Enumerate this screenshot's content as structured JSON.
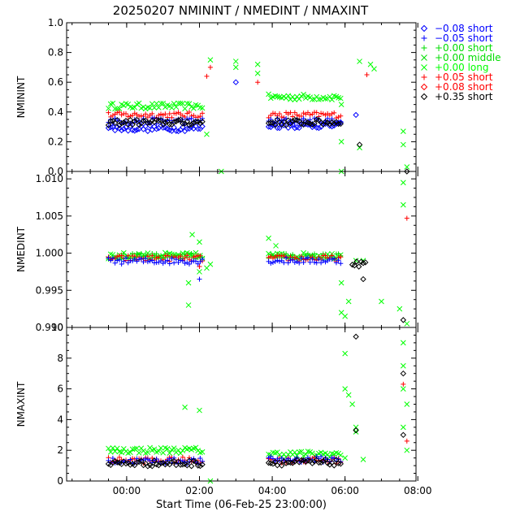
{
  "title": "20250207  NMININT  /  NMEDINT  /  NMAXINT",
  "xlabel": "Start Time (06-Feb-25 23:00:00)",
  "colors": {
    "black": "#000000",
    "blue": "#0000ff",
    "green": "#00dd00",
    "brightgreen": "#00ff00",
    "red": "#ff0000"
  },
  "legend": [
    {
      "marker": "diamond",
      "color": "#0000ff",
      "label": "−0.08 short"
    },
    {
      "marker": "plus",
      "color": "#0000ff",
      "label": "−0.05 short"
    },
    {
      "marker": "plus",
      "color": "#00dd00",
      "label": "+0.00 short"
    },
    {
      "marker": "cross",
      "color": "#00dd00",
      "label": "+0.00 middle"
    },
    {
      "marker": "cross",
      "color": "#00ff00",
      "label": "+0.00 long"
    },
    {
      "marker": "plus",
      "color": "#ff0000",
      "label": "+0.05 short"
    },
    {
      "marker": "diamond",
      "color": "#ff0000",
      "label": "+0.08 short"
    },
    {
      "marker": "diamond",
      "color": "#000000",
      "label": "+0.35 short"
    }
  ],
  "chart_data": [
    {
      "type": "scatter",
      "ylabel": "NMININT",
      "ylim": [
        0.0,
        1.0
      ],
      "yticks": [
        0.0,
        0.2,
        0.4,
        0.6,
        0.8,
        1.0
      ],
      "yticklabels": [
        "0.0",
        "0.2",
        "0.4",
        "0.6",
        "0.8",
        "1.0"
      ],
      "xlim_hours": [
        -0.65,
        8.95
      ],
      "xticks_hours": [
        1,
        3,
        5,
        7,
        9
      ],
      "xticklabels": [
        "00:00",
        "02:00",
        "04:00",
        "06:00",
        "08:00"
      ],
      "series": [
        {
          "name": "+0.00 long",
          "marker": "cross",
          "color": "#00ff00",
          "segments": [
            [
              0.5,
              3.1,
              0.44
            ],
            [
              4.9,
              6.9,
              0.5
            ]
          ],
          "points": [
            [
              4.0,
              0.74
            ],
            [
              4.0,
              0.7
            ],
            [
              4.6,
              0.72
            ],
            [
              4.6,
              0.66
            ],
            [
              7.7,
              0.72
            ],
            [
              7.8,
              0.69
            ],
            [
              7.4,
              0.74
            ],
            [
              6.9,
              0.45
            ],
            [
              6.9,
              0.2
            ],
            [
              7.4,
              0.16
            ],
            [
              6.9,
              0.0
            ],
            [
              8.6,
              0.27
            ],
            [
              8.6,
              0.18
            ],
            [
              8.7,
              0.03
            ],
            [
              3.6,
              0.0
            ],
            [
              3.3,
              0.75
            ],
            [
              3.2,
              0.25
            ]
          ]
        },
        {
          "name": "+0.05 short",
          "marker": "plus",
          "color": "#ff0000",
          "segments": [
            [
              0.5,
              3.1,
              0.38
            ],
            [
              4.9,
              6.9,
              0.38
            ]
          ],
          "points": [
            [
              3.2,
              0.64
            ],
            [
              3.3,
              0.7
            ],
            [
              4.6,
              0.6
            ],
            [
              7.6,
              0.65
            ]
          ]
        },
        {
          "name": "-0.05 short",
          "marker": "plus",
          "color": "#0000ff",
          "segments": [
            [
              0.5,
              3.1,
              0.34
            ],
            [
              4.9,
              6.9,
              0.34
            ]
          ],
          "points": []
        },
        {
          "name": "-0.08 short",
          "marker": "diamond",
          "color": "#0000ff",
          "segments": [
            [
              0.5,
              3.1,
              0.29
            ],
            [
              4.9,
              6.9,
              0.31
            ]
          ],
          "points": [
            [
              4.0,
              0.6
            ],
            [
              7.3,
              0.38
            ]
          ]
        },
        {
          "name": "+0.35 short",
          "marker": "diamond",
          "color": "#000000",
          "segments": [
            [
              0.5,
              3.1,
              0.33
            ],
            [
              4.9,
              6.9,
              0.33
            ]
          ],
          "points": [
            [
              7.4,
              0.18
            ],
            [
              8.7,
              0.0
            ]
          ]
        }
      ]
    },
    {
      "type": "scatter",
      "ylabel": "NMEDINT",
      "ylim": [
        0.99,
        1.011
      ],
      "yticks": [
        0.99,
        0.995,
        1.0,
        1.005,
        1.01
      ],
      "yticklabels": [
        "0.990",
        "0.995",
        "1.000",
        "1.005",
        "1.010"
      ],
      "xlim_hours": [
        -0.65,
        8.95
      ],
      "xticks_hours": [
        1,
        3,
        5,
        7,
        9
      ],
      "xticklabels": [
        "00:00",
        "02:00",
        "04:00",
        "06:00",
        "08:00"
      ],
      "series": [
        {
          "name": "+0.00 long",
          "marker": "cross",
          "color": "#00ff00",
          "segments": [
            [
              0.5,
              3.1,
              0.99965
            ],
            [
              4.9,
              6.9,
              0.99965
            ]
          ],
          "points": [
            [
              2.8,
              1.0025
            ],
            [
              3.0,
              1.0015
            ],
            [
              3.0,
              0.9975
            ],
            [
              2.7,
              0.996
            ],
            [
              2.7,
              0.993
            ],
            [
              3.2,
              0.998
            ],
            [
              3.3,
              0.9985
            ],
            [
              4.9,
              1.002
            ],
            [
              5.1,
              1.001
            ],
            [
              6.9,
              0.996
            ],
            [
              6.9,
              0.992
            ],
            [
              7.0,
              0.9915
            ],
            [
              7.1,
              0.9935
            ],
            [
              7.3,
              0.999
            ],
            [
              7.5,
              0.999
            ],
            [
              8.0,
              0.9935
            ],
            [
              8.5,
              0.9925
            ],
            [
              8.6,
              1.0095
            ],
            [
              8.6,
              1.0065
            ],
            [
              8.7,
              0.9905
            ]
          ]
        },
        {
          "name": "+0.00 short",
          "marker": "plus",
          "color": "#00dd00",
          "segments": [
            [
              0.5,
              3.1,
              0.99955
            ],
            [
              4.9,
              6.9,
              0.99955
            ]
          ],
          "points": []
        },
        {
          "name": "+0.05 short",
          "marker": "plus",
          "color": "#ff0000",
          "segments": [
            [
              0.5,
              3.1,
              0.9993
            ],
            [
              4.9,
              6.9,
              0.9993
            ]
          ],
          "points": [
            [
              8.7,
              1.0047
            ],
            [
              3.0,
              0.9982
            ]
          ]
        },
        {
          "name": "-0.05 short",
          "marker": "plus",
          "color": "#0000ff",
          "segments": [
            [
              0.5,
              3.1,
              0.99895
            ],
            [
              4.9,
              6.9,
              0.999
            ]
          ],
          "points": [
            [
              3.0,
              0.9965
            ]
          ]
        },
        {
          "name": "+0.35 short",
          "marker": "diamond",
          "color": "#000000",
          "segments": [
            [
              7.2,
              7.6,
              0.9986
            ]
          ],
          "points": [
            [
              7.5,
              0.9965
            ],
            [
              8.6,
              0.991
            ]
          ]
        }
      ]
    },
    {
      "type": "scatter",
      "ylabel": "NMAXINT",
      "ylim": [
        0.0,
        10.0
      ],
      "yticks": [
        0,
        2,
        4,
        6,
        8,
        10
      ],
      "yticklabels": [
        "0",
        "2",
        "4",
        "6",
        "8",
        "10"
      ],
      "xlim_hours": [
        -0.65,
        8.95
      ],
      "xticks_hours": [
        1,
        3,
        5,
        7,
        9
      ],
      "xticklabels": [
        "00:00",
        "02:00",
        "04:00",
        "06:00",
        "08:00"
      ],
      "series": [
        {
          "name": "+0.00 long",
          "marker": "cross",
          "color": "#00ff00",
          "segments": [
            [
              0.5,
              3.1,
              2.0
            ],
            [
              4.9,
              6.9,
              1.75
            ]
          ],
          "points": [
            [
              2.6,
              4.8
            ],
            [
              3.0,
              4.6
            ],
            [
              3.3,
              0.0
            ],
            [
              7.0,
              8.3
            ],
            [
              7.0,
              6.0
            ],
            [
              7.1,
              5.6
            ],
            [
              7.2,
              5.0
            ],
            [
              7.0,
              1.5
            ],
            [
              7.3,
              3.5
            ],
            [
              7.3,
              3.2
            ],
            [
              7.5,
              1.4
            ],
            [
              8.6,
              9.0
            ],
            [
              8.6,
              7.5
            ],
            [
              8.6,
              6.0
            ],
            [
              8.7,
              5.0
            ],
            [
              8.6,
              3.5
            ],
            [
              8.7,
              2.0
            ]
          ]
        },
        {
          "name": "+0.05 short",
          "marker": "plus",
          "color": "#ff0000",
          "segments": [
            [
              0.5,
              3.1,
              1.35
            ],
            [
              4.9,
              6.9,
              1.35
            ]
          ],
          "points": [
            [
              8.7,
              2.6
            ],
            [
              8.6,
              6.3
            ]
          ]
        },
        {
          "name": "-0.05 short",
          "marker": "plus",
          "color": "#0000ff",
          "segments": [
            [
              0.5,
              3.1,
              1.3
            ],
            [
              4.9,
              6.9,
              1.4
            ]
          ],
          "points": []
        },
        {
          "name": "+0.35 short",
          "marker": "diamond",
          "color": "#000000",
          "segments": [
            [
              0.5,
              3.1,
              1.15
            ],
            [
              4.9,
              6.9,
              1.2
            ]
          ],
          "points": [
            [
              7.3,
              9.4
            ],
            [
              7.3,
              3.3
            ],
            [
              8.6,
              7.0
            ],
            [
              8.6,
              3.0
            ]
          ]
        }
      ]
    }
  ]
}
